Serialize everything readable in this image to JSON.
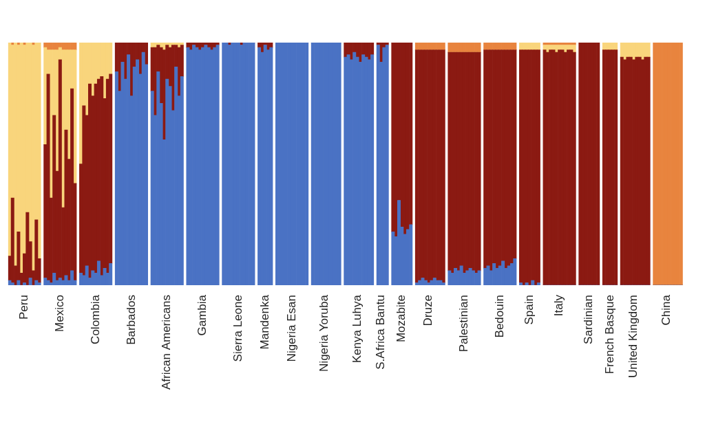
{
  "chart_data": {
    "type": "bar",
    "stacked": true,
    "grid": false,
    "tick_labels": "x",
    "ylim": [
      0,
      1
    ],
    "categories": [
      null,
      null,
      null,
      null,
      null,
      "Peru",
      null,
      null,
      null,
      null,
      null,
      null,
      null,
      null,
      null,
      null,
      null,
      "Mexico",
      null,
      null,
      null,
      null,
      null,
      null,
      null,
      null,
      null,
      null,
      null,
      "Colombia",
      null,
      null,
      null,
      null,
      null,
      null,
      null,
      null,
      null,
      null,
      null,
      "Barbados",
      null,
      null,
      null,
      null,
      null,
      null,
      null,
      null,
      null,
      null,
      null,
      "African Americans",
      null,
      null,
      null,
      null,
      null,
      null,
      null,
      null,
      null,
      null,
      null,
      "Gambia",
      null,
      null,
      null,
      null,
      null,
      null,
      null,
      null,
      null,
      null,
      null,
      "Sierra Leone",
      null,
      null,
      null,
      null,
      null,
      null,
      null,
      null,
      "Mandenka",
      null,
      null,
      null,
      null,
      null,
      null,
      null,
      null,
      "Nigeria Esan",
      null,
      null,
      null,
      null,
      null,
      null,
      null,
      null,
      null,
      null,
      "Nigeria Yoruba",
      null,
      null,
      null,
      null,
      null,
      null,
      null,
      null,
      null,
      null,
      "Kenya Luhya",
      null,
      null,
      null,
      null,
      null,
      null,
      null,
      "S.Africa Bantu",
      null,
      null,
      null,
      null,
      null,
      null,
      "Mozabite",
      null,
      null,
      null,
      null,
      null,
      null,
      null,
      null,
      "Druze",
      null,
      null,
      null,
      null,
      null,
      null,
      null,
      null,
      null,
      null,
      null,
      "Palestinian",
      null,
      null,
      null,
      null,
      null,
      null,
      null,
      null,
      null,
      null,
      null,
      "Bedouin",
      null,
      null,
      null,
      null,
      null,
      null,
      null,
      null,
      null,
      "Spain",
      null,
      null,
      null,
      null,
      null,
      null,
      null,
      null,
      null,
      "Italy",
      null,
      null,
      null,
      null,
      null,
      null,
      null,
      null,
      null,
      "Sardinian",
      null,
      null,
      null,
      null,
      null,
      null,
      "French Basque",
      null,
      null,
      null,
      null,
      null,
      null,
      null,
      "United Kingdom",
      null,
      null,
      null,
      null,
      null,
      null,
      null,
      null,
      null,
      null,
      "China",
      null,
      null,
      null,
      null,
      null
    ],
    "series": [
      {
        "color": "#4a72c4",
        "values": [
          0.02,
          0.01,
          0,
          0.02,
          0,
          0.01,
          0,
          0.03,
          0,
          0.02,
          0.01,
          null,
          0.03,
          0.02,
          0.01,
          0.05,
          0.02,
          0.03,
          0.02,
          0.04,
          0.02,
          0.06,
          0.02,
          null,
          0.05,
          0.04,
          0.08,
          0.03,
          0.06,
          0.05,
          0.1,
          0.04,
          0.07,
          0.05,
          0.09,
          null,
          0.88,
          0.8,
          0.92,
          0.85,
          0.95,
          0.78,
          0.9,
          0.93,
          0.87,
          0.96,
          0.91,
          null,
          0.8,
          0.7,
          0.88,
          0.75,
          0.6,
          0.85,
          0.82,
          0.72,
          0.9,
          0.78,
          0.86,
          null,
          0.98,
          0.97,
          0.99,
          0.98,
          0.97,
          0.98,
          0.99,
          0.98,
          0.97,
          0.98,
          0.99,
          null,
          1,
          1,
          0.99,
          1,
          1,
          1,
          0.99,
          1,
          1,
          1,
          1,
          null,
          0.98,
          0.96,
          0.99,
          0.97,
          0.98,
          null,
          1,
          1,
          1,
          1,
          1,
          1,
          1,
          1,
          1,
          1,
          1,
          null,
          1,
          1,
          1,
          1,
          1,
          1,
          1,
          1,
          1,
          1,
          null,
          0.94,
          0.95,
          0.93,
          0.96,
          0.94,
          0.92,
          0.95,
          0.94,
          0.93,
          0.95,
          null,
          0.99,
          0.92,
          0.98,
          0.99,
          null,
          0.22,
          0.2,
          0.35,
          0.24,
          0.21,
          0.23,
          0.25,
          null,
          0.01,
          0.02,
          0.03,
          0.02,
          0.01,
          0.02,
          0.03,
          0.02,
          0.02,
          0.01,
          null,
          0.06,
          0.05,
          0.07,
          0.06,
          0.08,
          0.05,
          0.06,
          0.07,
          0.06,
          0.05,
          0.06,
          null,
          0.07,
          0.08,
          0.06,
          0.09,
          0.07,
          0.08,
          0.1,
          0.07,
          0.08,
          0.09,
          0.11,
          null,
          0.01,
          0,
          0.01,
          0,
          0.02,
          0,
          0.01,
          null,
          0,
          0,
          0,
          0,
          0,
          0,
          0,
          0,
          0,
          0,
          0,
          null,
          0,
          0,
          0,
          0,
          0,
          0,
          0,
          null,
          0,
          0,
          0,
          0,
          0,
          null,
          0,
          0,
          0,
          0,
          0,
          0,
          0,
          0,
          0,
          0,
          null,
          0,
          0,
          0,
          0,
          0,
          0,
          0,
          0,
          0,
          0
        ]
      },
      {
        "color": "#8b1a12",
        "values": [
          0.1,
          0.35,
          0.08,
          0.2,
          0.05,
          0.12,
          0.3,
          0.15,
          0.06,
          0.25,
          0.1,
          null,
          0.55,
          0.85,
          0.35,
          0.65,
          0.45,
          0.9,
          0.3,
          0.6,
          0.5,
          0.75,
          0.4,
          null,
          0.45,
          0.7,
          0.62,
          0.8,
          0.72,
          0.78,
          0.75,
          0.82,
          0.7,
          0.8,
          0.78,
          null,
          0.12,
          0.2,
          0.08,
          0.15,
          0.05,
          0.22,
          0.1,
          0.07,
          0.13,
          0.04,
          0.09,
          null,
          0.18,
          0.28,
          0.11,
          0.23,
          0.37,
          0.14,
          0.16,
          0.27,
          0.09,
          0.2,
          0.13,
          null,
          0.02,
          0.03,
          0.01,
          0.02,
          0.03,
          0.02,
          0.01,
          0.02,
          0.03,
          0.02,
          0.01,
          null,
          0,
          0,
          0.01,
          0,
          0,
          0,
          0.01,
          0,
          0,
          0,
          0,
          null,
          0.02,
          0.04,
          0.01,
          0.03,
          0.02,
          null,
          0,
          0,
          0,
          0,
          0,
          0,
          0,
          0,
          0,
          0,
          0,
          null,
          0,
          0,
          0,
          0,
          0,
          0,
          0,
          0,
          0,
          0,
          null,
          0.06,
          0.05,
          0.07,
          0.04,
          0.06,
          0.08,
          0.05,
          0.06,
          0.07,
          0.05,
          null,
          0.01,
          0.08,
          0.02,
          0.01,
          null,
          0.78,
          0.8,
          0.65,
          0.76,
          0.79,
          0.77,
          0.75,
          null,
          0.96,
          0.95,
          0.94,
          0.95,
          0.96,
          0.95,
          0.94,
          0.95,
          0.95,
          0.96,
          null,
          0.9,
          0.91,
          0.89,
          0.9,
          0.88,
          0.91,
          0.9,
          0.89,
          0.9,
          0.91,
          0.9,
          null,
          0.9,
          0.89,
          0.91,
          0.88,
          0.9,
          0.89,
          0.87,
          0.9,
          0.89,
          0.88,
          0.86,
          null,
          0.96,
          0.97,
          0.96,
          0.97,
          0.95,
          0.97,
          0.96,
          null,
          0.97,
          0.96,
          0.97,
          0.97,
          0.96,
          0.97,
          0.97,
          0.96,
          0.97,
          0.97,
          0.96,
          null,
          1,
          1,
          1,
          1,
          1,
          1,
          1,
          null,
          0.97,
          0.97,
          0.97,
          0.97,
          0.97,
          null,
          0.94,
          0.93,
          0.94,
          0.94,
          0.93,
          0.94,
          0.94,
          0.93,
          0.94,
          0.94,
          null,
          0,
          0,
          0,
          0,
          0,
          0,
          0,
          0,
          0,
          0
        ]
      },
      {
        "color": "#f9d57c",
        "values": [
          0.88,
          0.63,
          0.92,
          0.77,
          0.95,
          0.86,
          0.7,
          0.82,
          0.93,
          0.73,
          0.89,
          null,
          0.4,
          0.1,
          0.61,
          0.27,
          0.5,
          0.05,
          0.65,
          0.33,
          0.45,
          0.16,
          0.55,
          null,
          0.5,
          0.26,
          0.3,
          0.17,
          0.22,
          0.17,
          0.15,
          0.14,
          0.23,
          0.15,
          0.13,
          null,
          0,
          0,
          0,
          0,
          0,
          0,
          0,
          0,
          0,
          0,
          0,
          null,
          0.02,
          0.02,
          0.01,
          0.02,
          0.03,
          0.01,
          0.02,
          0.01,
          0.01,
          0.02,
          0.01,
          null,
          0,
          0,
          0,
          0,
          0,
          0,
          0,
          0,
          0,
          0,
          0,
          null,
          0,
          0,
          0,
          0,
          0,
          0,
          0,
          0,
          0,
          0,
          0,
          null,
          0,
          0,
          0,
          0,
          0,
          null,
          0,
          0,
          0,
          0,
          0,
          0,
          0,
          0,
          0,
          0,
          0,
          null,
          0,
          0,
          0,
          0,
          0,
          0,
          0,
          0,
          0,
          0,
          null,
          0,
          0,
          0,
          0,
          0,
          0,
          0,
          0,
          0,
          0,
          null,
          0,
          0,
          0,
          0,
          null,
          0,
          0,
          0,
          0,
          0,
          0,
          0,
          null,
          0,
          0,
          0,
          0,
          0,
          0,
          0,
          0,
          0,
          0,
          null,
          0,
          0,
          0,
          0,
          0,
          0,
          0,
          0,
          0,
          0,
          0,
          null,
          0,
          0,
          0,
          0,
          0,
          0,
          0,
          0,
          0,
          0,
          0,
          null,
          0.03,
          0.03,
          0.03,
          0.03,
          0.03,
          0.03,
          0.03,
          null,
          0.02,
          0.03,
          0.02,
          0.02,
          0.03,
          0.02,
          0.02,
          0.03,
          0.02,
          0.02,
          0.03,
          null,
          0,
          0,
          0,
          0,
          0,
          0,
          0,
          null,
          0.03,
          0.03,
          0.03,
          0.03,
          0.03,
          null,
          0.06,
          0.07,
          0.06,
          0.06,
          0.07,
          0.06,
          0.06,
          0.07,
          0.06,
          0.06,
          null,
          0,
          0,
          0,
          0,
          0,
          0,
          0,
          0,
          0,
          0
        ]
      },
      {
        "color": "#e8843e",
        "values": [
          0,
          0.01,
          0,
          0.01,
          0,
          0.01,
          0,
          0,
          0.01,
          0,
          0,
          null,
          0.02,
          0.03,
          0.03,
          0.03,
          0.03,
          0.02,
          0.03,
          0.03,
          0.03,
          0.03,
          0.03,
          null,
          0,
          0,
          0,
          0,
          0,
          0,
          0,
          0,
          0,
          0,
          0,
          null,
          0,
          0,
          0,
          0,
          0,
          0,
          0,
          0,
          0,
          0,
          0,
          null,
          0,
          0,
          0,
          0,
          0,
          0,
          0,
          0,
          0,
          0,
          0,
          null,
          0,
          0,
          0,
          0,
          0,
          0,
          0,
          0,
          0,
          0,
          0,
          null,
          0,
          0,
          0,
          0,
          0,
          0,
          0,
          0,
          0,
          0,
          0,
          null,
          0,
          0,
          0,
          0,
          0,
          null,
          0,
          0,
          0,
          0,
          0,
          0,
          0,
          0,
          0,
          0,
          0,
          null,
          0,
          0,
          0,
          0,
          0,
          0,
          0,
          0,
          0,
          0,
          null,
          0,
          0,
          0,
          0,
          0,
          0,
          0,
          0,
          0,
          0,
          null,
          0,
          0,
          0,
          0,
          null,
          0,
          0,
          0,
          0,
          0,
          0,
          0,
          null,
          0.03,
          0.03,
          0.03,
          0.03,
          0.03,
          0.03,
          0.03,
          0.03,
          0.03,
          0.03,
          null,
          0.04,
          0.04,
          0.04,
          0.04,
          0.04,
          0.04,
          0.04,
          0.04,
          0.04,
          0.04,
          0.04,
          null,
          0.03,
          0.03,
          0.03,
          0.03,
          0.03,
          0.03,
          0.03,
          0.03,
          0.03,
          0.03,
          0.03,
          null,
          0,
          0,
          0,
          0,
          0,
          0,
          0,
          null,
          0.01,
          0.01,
          0.01,
          0.01,
          0.01,
          0.01,
          0.01,
          0.01,
          0.01,
          0.01,
          0.01,
          null,
          0,
          0,
          0,
          0,
          0,
          0,
          0,
          null,
          0,
          0,
          0,
          0,
          0,
          null,
          0,
          0,
          0,
          0,
          0,
          0,
          0,
          0,
          0,
          0,
          null,
          1,
          1,
          1,
          1,
          1,
          1,
          1,
          1,
          1,
          1
        ]
      }
    ]
  }
}
